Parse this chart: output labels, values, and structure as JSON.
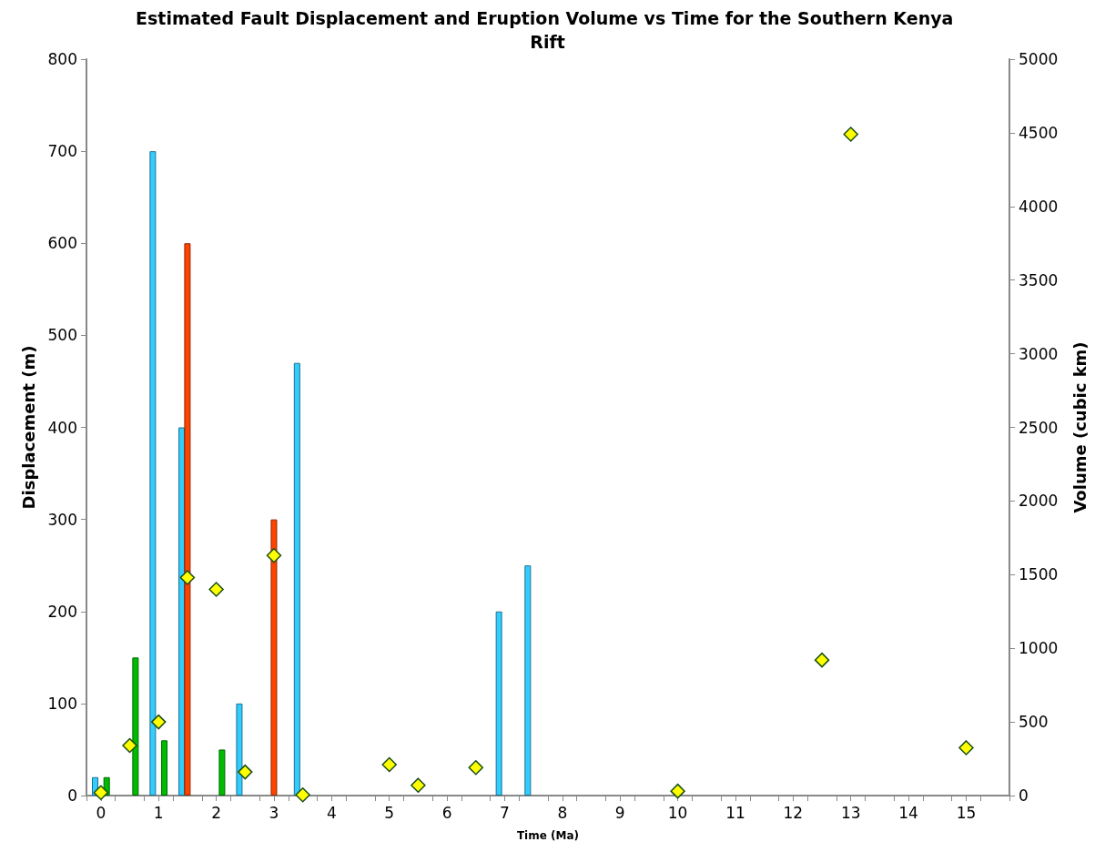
{
  "chart_data": {
    "type": "bar",
    "title": "Estimated Fault Displacement and Eruption Volume vs Time for the Southern Kenya Rift",
    "xlabel": "Time (Ma)",
    "ylabel": "Displacement (m)",
    "y2label": "Volume (cubic km)",
    "xlim": [
      -0.25,
      15.75
    ],
    "xticks": [
      {
        "value": -0.25,
        "label": null
      },
      0,
      {
        "value": 0.25,
        "label": null
      },
      {
        "value": 0.75,
        "label": null
      },
      1,
      {
        "value": 1.25,
        "label": null
      },
      {
        "value": 1.75,
        "label": null
      },
      2,
      {
        "value": 2.25,
        "label": null
      },
      {
        "value": 2.75,
        "label": null
      },
      3,
      {
        "value": 3.25,
        "label": null
      },
      {
        "value": 3.75,
        "label": null
      },
      4,
      {
        "value": 4.25,
        "label": null
      },
      {
        "value": 4.75,
        "label": null
      },
      5,
      {
        "value": 5.25,
        "label": null
      },
      {
        "value": 5.75,
        "label": null
      },
      6,
      {
        "value": 6.25,
        "label": null
      },
      {
        "value": 6.75,
        "label": null
      },
      7,
      {
        "value": 7.25,
        "label": null
      },
      {
        "value": 7.75,
        "label": null
      },
      8,
      {
        "value": 8.25,
        "label": null
      },
      {
        "value": 8.75,
        "label": null
      },
      9,
      {
        "value": 9.25,
        "label": null
      },
      {
        "value": 9.75,
        "label": null
      },
      10,
      {
        "value": 10.25,
        "label": null
      },
      {
        "value": 10.75,
        "label": null
      },
      11,
      {
        "value": 11.25,
        "label": null
      },
      {
        "value": 11.75,
        "label": null
      },
      12,
      {
        "value": 12.25,
        "label": null
      },
      {
        "value": 12.75,
        "label": null
      },
      13,
      {
        "value": 13.25,
        "label": null
      },
      {
        "value": 13.75,
        "label": null
      },
      14,
      {
        "value": 14.25,
        "label": null
      },
      {
        "value": 14.75,
        "label": null
      },
      15,
      {
        "value": 15.25,
        "label": null
      },
      {
        "value": 15.75,
        "label": null
      }
    ],
    "ylim": [
      0,
      800
    ],
    "yticks": [
      0,
      100,
      200,
      300,
      400,
      500,
      600,
      700,
      800
    ],
    "y2lim": [
      0,
      5000
    ],
    "y2ticks": [
      0,
      500,
      1000,
      1500,
      2000,
      2500,
      3000,
      3500,
      4000,
      4500,
      5000
    ],
    "grid": false,
    "series": [
      {
        "color": "#33ccff",
        "x": [
          -0.1,
          0.9,
          1.4,
          2.4,
          3.4,
          6.9,
          7.4
        ],
        "values": [
          20,
          700,
          400,
          100,
          470,
          200,
          250
        ]
      },
      {
        "color": "#00bb00",
        "x": [
          0.1,
          0.6,
          1.1,
          2.1
        ],
        "values": [
          20,
          150,
          60,
          50
        ]
      },
      {
        "color": "#ff4400",
        "x": [
          1.5,
          3.0
        ],
        "values": [
          600,
          300
        ]
      },
      {
        "type": "scatter",
        "axis": "y2",
        "marker": "diamond",
        "color": "#ffff00",
        "x": [
          0,
          0.5,
          1,
          1.5,
          2,
          2.5,
          3,
          3.5,
          5,
          5.5,
          6.5,
          10,
          12.5,
          13,
          15
        ],
        "values": [
          20,
          340,
          500,
          1480,
          1400,
          160,
          1630,
          5,
          210,
          70,
          190,
          30,
          920,
          4490,
          325
        ]
      }
    ]
  }
}
